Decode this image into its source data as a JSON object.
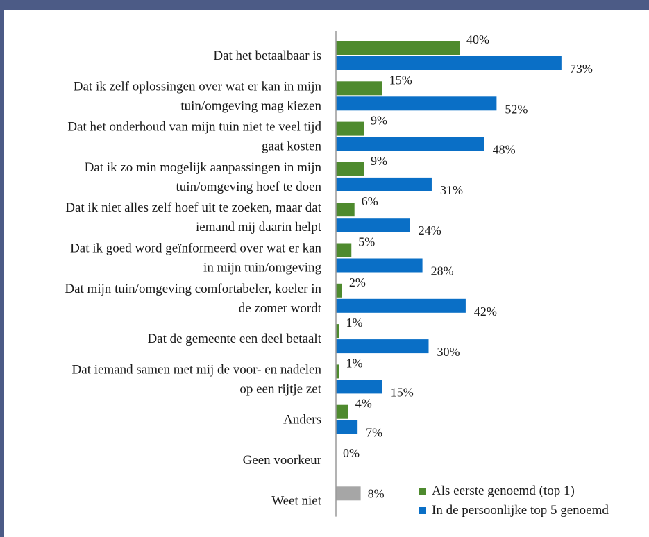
{
  "chart_data": {
    "type": "bar",
    "orientation": "horizontal",
    "categories": [
      "Dat het betaalbaar is",
      "Dat ik zelf oplossingen over wat er kan in mijn tuin/omgeving mag kiezen",
      "Dat het onderhoud van mijn tuin niet te veel tijd gaat kosten",
      "Dat ik zo min mogelijk aanpassingen in mijn tuin/omgeving hoef te doen",
      "Dat ik niet alles zelf hoef uit te zoeken, maar dat iemand mij daarin helpt",
      "Dat ik goed word geïnformeerd over wat er kan in mijn tuin/omgeving",
      "Dat mijn tuin/omgeving comfortabeler, koeler in de zomer wordt",
      "Dat de gemeente een deel betaalt",
      "Dat iemand samen met mij de voor- en nadelen op een rijtje zet",
      "Anders",
      "Geen voorkeur",
      "Weet niet"
    ],
    "category_lines": [
      [
        "Dat het betaalbaar is"
      ],
      [
        "Dat ik zelf oplossingen over wat er kan in mijn",
        "tuin/omgeving mag kiezen"
      ],
      [
        "Dat het onderhoud van mijn tuin niet te veel tijd",
        "gaat kosten"
      ],
      [
        "Dat ik zo min mogelijk aanpassingen in mijn",
        "tuin/omgeving hoef te doen"
      ],
      [
        "Dat ik niet alles zelf hoef uit te zoeken, maar dat",
        "iemand mij daarin helpt"
      ],
      [
        "Dat ik goed word geïnformeerd over wat er kan",
        "in mijn tuin/omgeving"
      ],
      [
        "Dat mijn tuin/omgeving comfortabeler, koeler in",
        "de zomer wordt"
      ],
      [
        "Dat de gemeente een deel betaalt"
      ],
      [
        "Dat iemand samen met mij de voor- en nadelen",
        "op een rijtje zet"
      ],
      [
        "Anders"
      ],
      [
        "Geen voorkeur"
      ],
      [
        "Weet niet"
      ]
    ],
    "series": [
      {
        "name": "Als eerste genoemd (top 1)",
        "color": "#4e8a2e",
        "values": [
          40,
          15,
          9,
          9,
          6,
          5,
          2,
          1,
          1,
          4,
          null,
          null
        ],
        "labels": [
          "40%",
          "15%",
          "9%",
          "9%",
          "6%",
          "5%",
          "2%",
          "1%",
          "1%",
          "4%",
          "",
          ""
        ]
      },
      {
        "name": "In de persoonlijke top 5 genoemd",
        "color": "#0a6fc6",
        "values": [
          73,
          52,
          48,
          31,
          24,
          28,
          42,
          30,
          15,
          7,
          null,
          null
        ],
        "labels": [
          "73%",
          "52%",
          "48%",
          "31%",
          "24%",
          "28%",
          "42%",
          "30%",
          "15%",
          "7%",
          "",
          ""
        ]
      }
    ],
    "single_values": [
      {
        "category_index": 10,
        "value": 0,
        "label": "0%",
        "color": "#a6a6a6"
      },
      {
        "category_index": 11,
        "value": 8,
        "label": "8%",
        "color": "#a6a6a6"
      }
    ],
    "unit": "%",
    "xlim": [
      0,
      100
    ],
    "grid": false,
    "legend_position": "bottom-right"
  }
}
